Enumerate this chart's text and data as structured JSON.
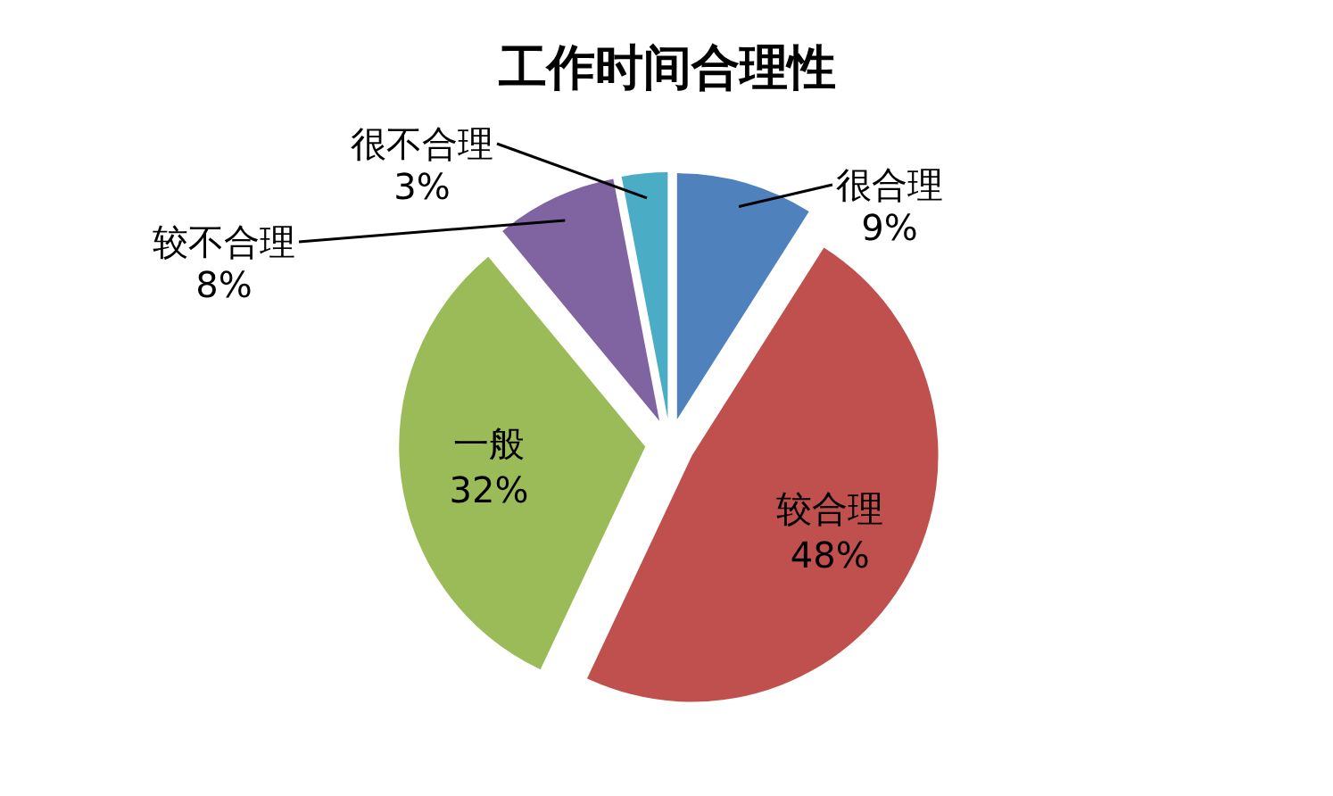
{
  "chart_data": {
    "type": "pie",
    "title": "工作时间合理性",
    "categories": [
      "很合理",
      "较合理",
      "一般",
      "较不合理",
      "很不合理"
    ],
    "values": [
      9,
      48,
      32,
      8,
      3
    ],
    "colors": [
      "#4f81bd",
      "#c0504d",
      "#9bbb59",
      "#8064a2",
      "#4bacc6"
    ],
    "value_labels": [
      "9%",
      "48%",
      "32%",
      "8%",
      "3%"
    ]
  }
}
